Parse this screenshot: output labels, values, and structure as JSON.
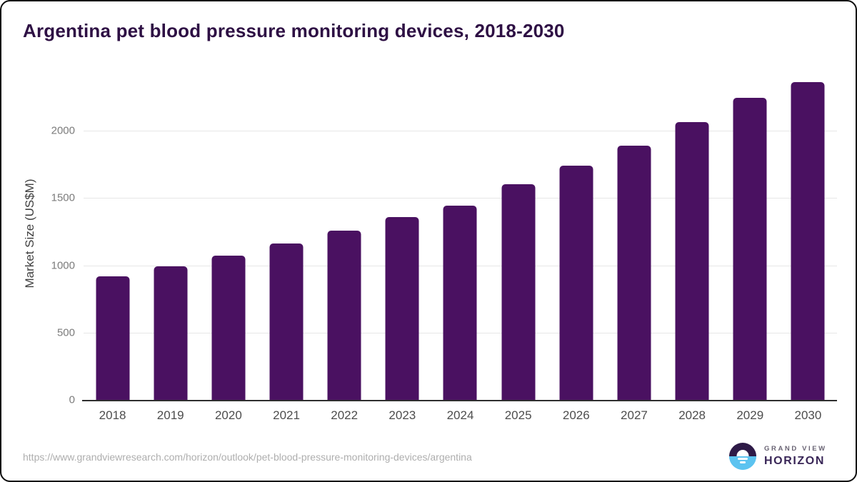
{
  "footer": {
    "source_url": "https://www.grandviewresearch.com/horizon/outlook/pet-blood-pressure-monitoring-devices/argentina",
    "brand_line1": "GRAND VIEW",
    "brand_line2": "HORIZON"
  },
  "chart_data": {
    "type": "bar",
    "title": "Argentina pet blood pressure monitoring devices, 2018-2030",
    "categories": [
      "2018",
      "2019",
      "2020",
      "2021",
      "2022",
      "2023",
      "2024",
      "2025",
      "2026",
      "2027",
      "2028",
      "2029",
      "2030"
    ],
    "values": [
      920,
      990,
      1070,
      1160,
      1260,
      1360,
      1445,
      1605,
      1740,
      1890,
      2065,
      2245,
      2360
    ],
    "xlabel": "",
    "ylabel": "Market Size (US$M)",
    "units": "US$M",
    "yticks": [
      0,
      500,
      1000,
      1500,
      2000
    ],
    "ylim": [
      0,
      2430
    ],
    "grid": true,
    "legend": false,
    "bar_color": "#4a1161"
  },
  "colors": {
    "bar": "#4a1161",
    "title_text": "#2e1044",
    "grid_line": "#e7e7e7",
    "axis_line": "#2f2f2f",
    "logo_dark": "#2e1a47",
    "logo_blue": "#5cc3f0"
  }
}
